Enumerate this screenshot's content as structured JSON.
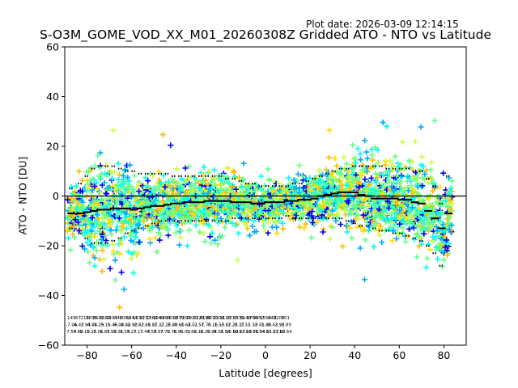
{
  "chart_data": {
    "type": "scatter",
    "plot_date": "Plot date: 2026-03-09 12:14:15",
    "title": "S-O3M_GOME_VOD_XX_M01_20260308Z Gridded ATO - NTO vs Latitude",
    "xlabel": "Latitude [degrees]",
    "ylabel": "ATO - NTO [DU]",
    "xlim": [
      -90,
      90
    ],
    "ylim": [
      -60,
      60
    ],
    "xticks": [
      -80,
      -60,
      -40,
      -20,
      0,
      20,
      40,
      60,
      80
    ],
    "yticks": [
      -60,
      -40,
      -20,
      0,
      20,
      40,
      60
    ],
    "xtick_labels": [
      "−80",
      "−60",
      "−40",
      "−20",
      "0",
      "20",
      "40",
      "60",
      "80"
    ],
    "ytick_labels": [
      "−60",
      "−40",
      "−20",
      "0",
      "20",
      "40",
      "60"
    ],
    "marker": "+",
    "colors": {
      "blue": "#0000ee",
      "azure": "#00aaff",
      "cyan": "#00ffee",
      "green": "#66ff88",
      "yellowgreen": "#ccff44",
      "yellow": "#ffdd00",
      "orange": "#ffbb00",
      "line": "#000000"
    },
    "mean_profile": {
      "x": [
        -87,
        -83,
        -80,
        -77,
        -74,
        -71,
        -68,
        -65,
        -62,
        -59,
        -56,
        -53,
        -50,
        -47,
        -44,
        -41,
        -38,
        -35,
        -32,
        -29,
        -26,
        -23,
        -20,
        -17,
        -14,
        -11,
        -8,
        -5,
        -2,
        1,
        4,
        7,
        10,
        13,
        16,
        19,
        22,
        25,
        28,
        31,
        34,
        37,
        40,
        43,
        46,
        49,
        52,
        55,
        58,
        61,
        64,
        67,
        70,
        73,
        76,
        79,
        82
      ],
      "y": [
        -7,
        -7,
        -6.5,
        -6,
        -5.5,
        -5.5,
        -5,
        -5,
        -5,
        -5.5,
        -5,
        -4.5,
        -4,
        -4,
        -3.5,
        -3,
        -3,
        -2.5,
        -2.5,
        -2.5,
        -2,
        -2,
        -2,
        -2,
        -2.5,
        -2.5,
        -2.5,
        -3,
        -3,
        -2.5,
        -2.5,
        -2.5,
        -2,
        -2,
        -1.5,
        -1.5,
        -1,
        0,
        0.5,
        1,
        1.5,
        1.5,
        1.5,
        0.5,
        0,
        -1,
        -1,
        -1,
        -1,
        -1.5,
        -1.5,
        -2.5,
        -3,
        -6,
        -9,
        -13,
        -7
      ]
    },
    "upper_sigma": {
      "x": [
        -87,
        -83,
        -80,
        -77,
        -74,
        -71,
        -68,
        -65,
        -62,
        -59,
        -56,
        -53,
        -50,
        -47,
        -44,
        -41,
        -38,
        -35,
        -32,
        -29,
        -26,
        -23,
        -20,
        -17,
        -14,
        -11,
        -8,
        -5,
        -2,
        1,
        4,
        7,
        10,
        13,
        16,
        19,
        22,
        25,
        28,
        31,
        34,
        37,
        40,
        43,
        46,
        49,
        52,
        55,
        58,
        61,
        64,
        67,
        70,
        73,
        76,
        79,
        82
      ],
      "y": [
        3,
        5,
        8,
        11,
        12,
        12,
        12,
        11,
        10,
        10,
        9,
        9,
        9,
        9,
        9,
        8,
        8,
        8,
        8,
        8,
        8,
        8,
        8,
        7,
        7,
        6,
        5,
        5,
        4,
        4,
        4,
        4,
        4,
        5,
        5,
        6,
        7,
        8,
        9,
        10,
        11,
        11,
        12,
        12,
        12,
        12,
        12,
        11,
        11,
        11,
        11,
        10,
        10,
        7,
        4,
        -3,
        8
      ]
    },
    "lower_sigma": {
      "x": [
        -87,
        -83,
        -80,
        -77,
        -74,
        -71,
        -68,
        -65,
        -62,
        -59,
        -56,
        -53,
        -50,
        -47,
        -44,
        -41,
        -38,
        -35,
        -32,
        -29,
        -26,
        -23,
        -20,
        -17,
        -14,
        -11,
        -8,
        -5,
        -2,
        1,
        4,
        7,
        10,
        13,
        16,
        19,
        22,
        25,
        28,
        31,
        34,
        37,
        40,
        43,
        46,
        49,
        52,
        55,
        58,
        61,
        64,
        67,
        70,
        73,
        76,
        79,
        82
      ],
      "y": [
        -13,
        -15,
        -17,
        -19,
        -19,
        -19,
        -18,
        -17,
        -15,
        -14,
        -13,
        -12,
        -11,
        -10,
        -10,
        -10,
        -10,
        -10,
        -10,
        -10,
        -10,
        -10,
        -10,
        -10,
        -9,
        -9,
        -9,
        -9,
        -9,
        -9,
        -9,
        -9,
        -8,
        -9,
        -9,
        -9,
        -9,
        -9,
        -9,
        -9,
        -9,
        -10,
        -11,
        -12,
        -12,
        -13,
        -14,
        -14,
        -15,
        -15,
        -16,
        -17,
        -18,
        -20,
        -23,
        -28,
        -20
      ]
    },
    "scatter_seed": 20260308,
    "n_points_per_band": 26,
    "bins": [
      {
        "lat": -87,
        "n": "145",
        "mean": "-7.06",
        "std": "7.54"
      },
      {
        "lat": -84,
        "n": "67",
        "mean": "-4.47",
        "std": "7.88"
      },
      {
        "lat": -81,
        "n": "218",
        "mean": "-3.94",
        "std": "5.10"
      },
      {
        "lat": -78,
        "n": "3836",
        "mean": "-4.84",
        "std": "5.27"
      },
      {
        "lat": -75,
        "n": "2541",
        "mean": "-5.29",
        "std": "8.01"
      },
      {
        "lat": -72,
        "n": "3682",
        "mean": "-5.15",
        "std": "6.85"
      },
      {
        "lat": -69,
        "n": "2403",
        "mean": "-5.46",
        "std": "7.69"
      },
      {
        "lat": -66,
        "n": "840",
        "mean": "-6.04",
        "std": "8.31"
      },
      {
        "lat": -63,
        "n": "1062",
        "mean": "-6.84",
        "std": "6.58"
      },
      {
        "lat": -60,
        "n": "5444",
        "mean": "-2.90",
        "std": "7.27"
      },
      {
        "lat": -57,
        "n": "1330",
        "mean": "-2.82",
        "std": "7.17"
      },
      {
        "lat": -54,
        "n": "1232",
        "mean": "-2.66",
        "std": "7.44"
      },
      {
        "lat": -51,
        "n": "1360",
        "mean": "-1.87",
        "std": "7.58"
      },
      {
        "lat": -48,
        "n": "1040",
        "mean": "-1.37",
        "std": "7.97"
      },
      {
        "lat": -45,
        "n": "6403",
        "mean": "-2.26",
        "std": "7.73"
      },
      {
        "lat": -42,
        "n": "0010",
        "mean": "-2.80",
        "std": "6.76"
      },
      {
        "lat": -39,
        "n": "9879",
        "mean": "-0.60",
        "std": "6.95"
      },
      {
        "lat": -36,
        "n": "7392",
        "mean": "-1.64",
        "std": "6.03"
      },
      {
        "lat": -33,
        "n": "2920",
        "mean": "-3.01",
        "std": "5.62"
      },
      {
        "lat": -30,
        "n": "9329",
        "mean": "-2.57",
        "std": "6.16"
      },
      {
        "lat": -27,
        "n": "6196",
        "mean": "-1.75",
        "std": "6.20"
      },
      {
        "lat": -24,
        "n": "8070",
        "mean": "-0.16",
        "std": "5.94"
      },
      {
        "lat": -21,
        "n": "2308",
        "mean": "-1.55",
        "std": "8.51"
      },
      {
        "lat": -18,
        "n": "1113",
        "mean": "-2.82",
        "std": "8.54"
      },
      {
        "lat": -15,
        "n": "9210",
        "mean": "-1.25",
        "std": "10.90"
      },
      {
        "lat": -12,
        "n": "3339",
        "mean": "-0.17",
        "std": "10.67"
      },
      {
        "lat": -9,
        "n": "3149",
        "mean": "0.33",
        "std": "13.00"
      },
      {
        "lat": -6,
        "n": "1704",
        "mean": "-1.55",
        "std": "14.76"
      },
      {
        "lat": -3,
        "n": "9952",
        "mean": "-2.41",
        "std": "16.54"
      },
      {
        "lat": 0,
        "n": "1550",
        "mean": "-1.86",
        "std": "14.81"
      },
      {
        "lat": 3,
        "n": "648",
        "mean": "-0.43",
        "std": "11.37"
      },
      {
        "lat": 6,
        "n": "3200",
        "mean": "-2.92",
        "std": "13.80"
      },
      {
        "lat": 9,
        "n": "701",
        "mean": "-5.89",
        "std": "12.64"
      }
    ]
  }
}
